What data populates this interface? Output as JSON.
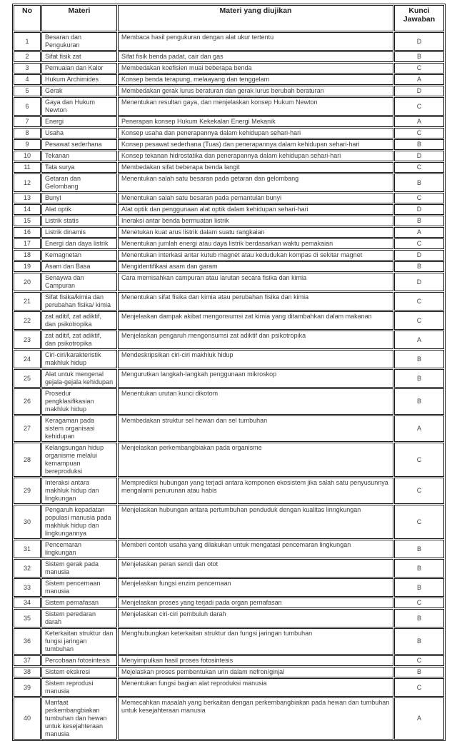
{
  "colors": {
    "background": "#ffffff",
    "border": "#1a1a1a",
    "text": "#3d3d3d",
    "header_text": "#222222"
  },
  "table": {
    "headers": {
      "no": "No",
      "materi": "Materi",
      "diujikan": "Materi yang diujikan",
      "kunci": "Kunci Jawaban"
    },
    "rows": [
      {
        "no": "1",
        "materi": "Besaran dan Pengukuran",
        "diujikan": "Membaca hasil pengukuran dengan alat ukur tertentu",
        "kunci": "D"
      },
      {
        "no": "2",
        "materi": "Sifat fisik zat",
        "diujikan": "Sifat fisik benda padat, cair dan gas",
        "kunci": "B"
      },
      {
        "no": "3",
        "materi": "Pemuaian dan Kalor",
        "diujikan": "Membedakan koefisien muai beberapa benda",
        "kunci": "C"
      },
      {
        "no": "4",
        "materi": "Hukum Archimides",
        "diujikan": "Konsep benda terapung, melaayang dan tenggelam",
        "kunci": "A"
      },
      {
        "no": "5",
        "materi": "Gerak",
        "diujikan": "Membedakan gerak lurus beraturan dan gerak lurus berubah beraturan",
        "kunci": "D"
      },
      {
        "no": "6",
        "materi": "Gaya dan Hukum Newton",
        "diujikan": "Menentukan resultan gaya, dan menjelaskan konsep Hukum Newton",
        "kunci": "C"
      },
      {
        "no": "7",
        "materi": "Energi",
        "diujikan": "Penerapan konsep Hukum Kekekalan Energi Mekanik",
        "kunci": "A"
      },
      {
        "no": "8",
        "materi": "Usaha",
        "diujikan": "Konsep usaha dan penerapannya dalam kehidupan sehari-hari",
        "kunci": "C"
      },
      {
        "no": "9",
        "materi": "Pesawat sederhana",
        "diujikan": "Konsep pesawat sederhana (Tuas) dan penerapannya dalam kehidupan sehari-hari",
        "kunci": "B"
      },
      {
        "no": "10",
        "materi": "Tekanan",
        "diujikan": "Konsep tekanan hidrostatika dan penerapannya dalam kehidupan sehari-hari",
        "kunci": "D"
      },
      {
        "no": "11",
        "materi": "Tata surya",
        "diujikan": "Membedakan sifat beberapa benda langit",
        "kunci": "C"
      },
      {
        "no": "12",
        "materi": "Getaran dan Gelombang",
        "diujikan": "Menentukan salah satu besaran pada getaran dan gelombang",
        "kunci": "B"
      },
      {
        "no": "13",
        "materi": "Bunyi",
        "diujikan": "Menentukan salah satu besaran pada pemantulan bunyi",
        "kunci": "C"
      },
      {
        "no": "14",
        "materi": "Alat optik",
        "diujikan": "Alat optik dan penggunaan alat optik dalam kehidupan sehari-hari",
        "kunci": "D"
      },
      {
        "no": "15",
        "materi": "Listrik statis",
        "diujikan": "Ineraksi antar benda bermuatan listrik",
        "kunci": "B"
      },
      {
        "no": "16",
        "materi": "Listrik dinamis",
        "diujikan": "Menetukan kuat arus listrik dalam suatu rangkaian",
        "kunci": "A"
      },
      {
        "no": "17",
        "materi": "Energi dan daya listrik",
        "diujikan": "Menentukan jumlah energi atau daya listrik berdasarkan waktu pemakaian",
        "kunci": "C"
      },
      {
        "no": "18",
        "materi": "Kemagnetan",
        "diujikan": "Menentukan interkasi antar kutub magnet atau kedudukan kompas di sekitar magnet",
        "kunci": "D"
      },
      {
        "no": "19",
        "materi": "Asam dan Basa",
        "diujikan": "Mengidentifikasi asam dan garam",
        "kunci": "B"
      },
      {
        "no": "20",
        "materi": "Senaywa dan Campuran",
        "diujikan": "Cara memisahkan campuran atau larutan secara fisika dan kimia",
        "kunci": "D"
      },
      {
        "no": "21",
        "materi": "Sifat fisika/kimia dan perubahan fisika/ kimia",
        "diujikan": "Menentukan sifat fisika dan kimia atau perubahan fisika dan kimia",
        "kunci": "C"
      },
      {
        "no": "22",
        "materi": "zat aditif, zat adiktif, dan psikotropika",
        "diujikan": "Menjelaskan dampak akibat mengonsumsi zat kimia yang ditambahkan dalam makanan",
        "kunci": "C"
      },
      {
        "no": "23",
        "materi": "zat aditif, zat adiktif, dan psikotropika",
        "diujikan": "Menjelaskan pengaruh mengonsumsi zat adiktif dan psikotropika",
        "kunci": "A"
      },
      {
        "no": "24",
        "materi": "Ciri-ciri/karakteristik makhluk hidup",
        "diujikan": "Mendeskripsikan ciri-ciri makhluk hidup",
        "kunci": "B"
      },
      {
        "no": "25",
        "materi": "Alat untuk mengenal gejala-gejala kehidupan",
        "diujikan": "Mengurutkan langkah-langkah penggunaan mikroskop",
        "kunci": "B"
      },
      {
        "no": "26",
        "materi": "Prosedur pengklasifikasian makhluk hidup",
        "diujikan": "Menentukan urutan kunci dikotom",
        "kunci": "B"
      },
      {
        "no": "27",
        "materi": "Keragaman pada sistem organisasi kehidupan",
        "diujikan": "Membedakan struktur sel hewan dan sel tumbuhan",
        "kunci": "A"
      },
      {
        "no": "28",
        "materi": "Kelangsungan hidup organisme melalui kemampuan bereproduksi",
        "diujikan": "Menjelaskan perkembangbiakan pada organisme",
        "kunci": "C"
      },
      {
        "no": "29",
        "materi": "Interaksi antara makhluk hidup dan lingkungan",
        "diujikan": "Memprediksi hubungan yang terjadi antara komponen ekosistem jika salah satu penyusunnya mengalami penurunan atau habis",
        "kunci": "C"
      },
      {
        "no": "30",
        "materi": "Pengaruh kepadatan populasi manusia pada makhluk hidup dan lingkungannya",
        "diujikan": "Menjelaskan hubungan antara pertumbuhan penduduk dengan kualitas linngkungan",
        "kunci": "C"
      },
      {
        "no": "31",
        "materi": "Pencemaran lingkungan",
        "diujikan": "Memberi contoh usaha yang dilakukan untuk mengatasi pencemaran lingkungan",
        "kunci": "B"
      },
      {
        "no": "32",
        "materi": "Sistem gerak pada manusia",
        "diujikan": "Menjelaskan peran sendi dan otot",
        "kunci": "B"
      },
      {
        "no": "33",
        "materi": "Sistem pencernaan manusia",
        "diujikan": "Menjelaskan fungsi enzim pencernaan",
        "kunci": "B"
      },
      {
        "no": "34",
        "materi": "Sistem pernafasan",
        "diujikan": "Menjelaskan proses yang terjadi pada organ pernafasan",
        "kunci": "C"
      },
      {
        "no": "35",
        "materi": "Sistem peredaran darah",
        "diujikan": "Menjelaskan ciri-ciri pembuluh darah",
        "kunci": "B"
      },
      {
        "no": "36",
        "materi": "Keterkaitan struktur dan fungsi jaringan tumbuhan",
        "diujikan": "Menghubungkan keterkaitan struktur dan fungsi jaringan tumbuhan",
        "kunci": "B"
      },
      {
        "no": "37",
        "materi": "Percobaan fotosintesis",
        "diujikan": "Menyimpulkan hasil proses fotosintesis",
        "kunci": "C"
      },
      {
        "no": "38",
        "materi": "Sistem ekskresi",
        "diujikan": "Mejelaskan proses pembentukan urin dalam nefron/ginjal",
        "kunci": "B"
      },
      {
        "no": "39",
        "materi": "Sistem reprodusi manusia",
        "diujikan": "Menentukan fungsi bagian alat reproduksi manusia",
        "kunci": "C"
      },
      {
        "no": "40",
        "materi": "Manfaat perkembangbiakan tumbuhan dan hewan untuk kesejahteraan\nmanusia",
        "diujikan": "Memecahkan masalah yang berkaitan dengan perkembangbiakan pada hewan dan tumbuhan untuk kesejahteraan manusia",
        "kunci": "A"
      }
    ]
  }
}
